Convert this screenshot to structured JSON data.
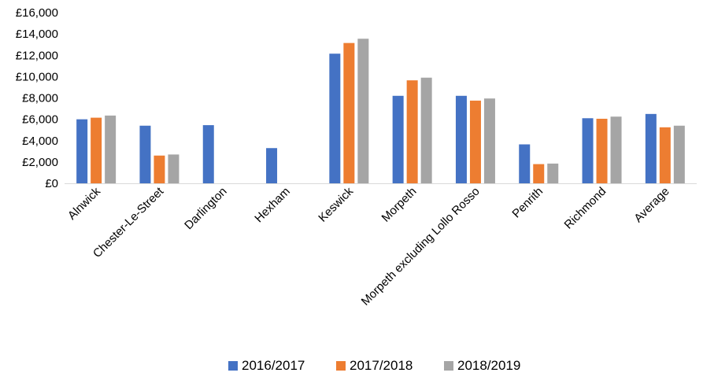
{
  "chart_data": {
    "type": "bar",
    "title": "",
    "xlabel": "",
    "ylabel": "",
    "ylim": [
      0,
      16000
    ],
    "y_ticks": [
      0,
      2000,
      4000,
      6000,
      8000,
      10000,
      12000,
      14000,
      16000
    ],
    "y_tick_labels": [
      "£0",
      "£2,000",
      "£4,000",
      "£6,000",
      "£8,000",
      "£10,000",
      "£12,000",
      "£14,000",
      "£16,000"
    ],
    "grid": false,
    "legend_position": "bottom",
    "categories": [
      "Alnwick",
      "Chester-Le-Street",
      "Darlington",
      "Hexham",
      "Keswick",
      "Morpeth",
      "Morpeth excluding Lollo Rosso",
      "Penrith",
      "Richmond",
      "Average"
    ],
    "series": [
      {
        "name": "2016/2017",
        "color": "#4472C4",
        "values": [
          6000,
          5400,
          5450,
          3300,
          12150,
          8200,
          8200,
          3650,
          6100,
          6500
        ]
      },
      {
        "name": "2017/2018",
        "color": "#ED7D31",
        "values": [
          6150,
          2600,
          0,
          0,
          13150,
          9650,
          7750,
          1800,
          6050,
          5250
        ]
      },
      {
        "name": "2018/2019",
        "color": "#A5A5A5",
        "values": [
          6350,
          2700,
          0,
          0,
          13550,
          9900,
          7950,
          1850,
          6250,
          5400
        ]
      }
    ]
  }
}
